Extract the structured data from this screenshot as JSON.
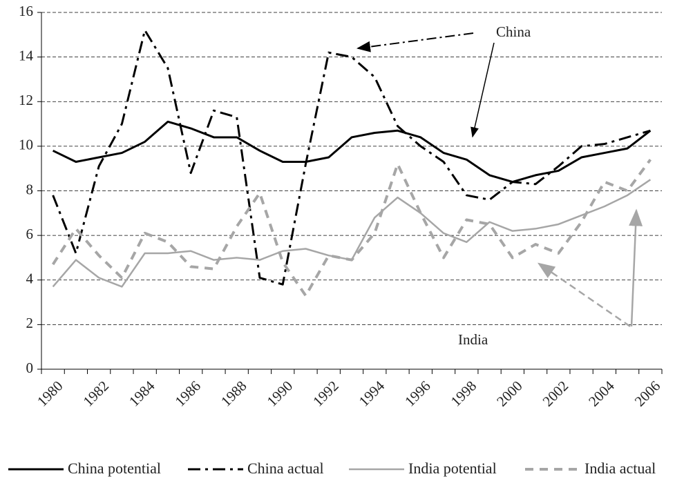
{
  "chart_data": {
    "type": "line",
    "categories": [
      "1980",
      null,
      "1982",
      null,
      "1984",
      null,
      "1986",
      null,
      "1988",
      null,
      "1990",
      null,
      "1992",
      null,
      "1994",
      null,
      "1996",
      null,
      "1998",
      null,
      "2000",
      null,
      "2002",
      null,
      "2004",
      null,
      "2006"
    ],
    "series": [
      {
        "name": "China potential",
        "color": "#000000",
        "style": "solid",
        "values": [
          9.8,
          9.3,
          9.5,
          9.7,
          10.2,
          11.1,
          10.8,
          10.4,
          10.4,
          9.8,
          9.3,
          9.3,
          9.5,
          10.4,
          10.6,
          10.7,
          10.4,
          9.7,
          9.4,
          8.7,
          8.4,
          8.7,
          8.9,
          9.5,
          9.7,
          9.9,
          10.7
        ]
      },
      {
        "name": "China actual",
        "color": "#000000",
        "style": "dashdot",
        "values": [
          7.8,
          5.2,
          9.1,
          11.0,
          15.2,
          13.5,
          8.8,
          11.6,
          11.3,
          4.1,
          3.8,
          9.2,
          14.2,
          14.0,
          13.1,
          10.9,
          10.0,
          9.3,
          7.8,
          7.6,
          8.4,
          8.3,
          9.1,
          10.0,
          10.1,
          10.4,
          10.7
        ]
      },
      {
        "name": "India potential",
        "color": "#a6a6a6",
        "style": "solid",
        "values": [
          3.7,
          4.9,
          4.1,
          3.7,
          5.2,
          5.2,
          5.3,
          4.9,
          5.0,
          4.9,
          5.3,
          5.4,
          5.1,
          4.9,
          6.8,
          7.7,
          7.0,
          6.1,
          5.7,
          6.6,
          6.2,
          6.3,
          6.5,
          6.9,
          7.3,
          7.8,
          8.5
        ]
      },
      {
        "name": "India actual",
        "color": "#a6a6a6",
        "style": "dash",
        "values": [
          4.7,
          6.3,
          5.1,
          4.1,
          6.1,
          5.7,
          4.6,
          4.5,
          6.4,
          7.9,
          4.8,
          3.3,
          5.1,
          4.9,
          6.1,
          9.2,
          7.0,
          5.0,
          6.7,
          6.5,
          5.0,
          5.6,
          5.2,
          6.6,
          8.4,
          8.0,
          9.4
        ]
      }
    ],
    "ylim": [
      0,
      16
    ],
    "yticks": [
      0,
      2,
      4,
      6,
      8,
      10,
      12,
      14,
      16
    ],
    "grid": true,
    "annotations": [
      "China",
      "India"
    ]
  }
}
